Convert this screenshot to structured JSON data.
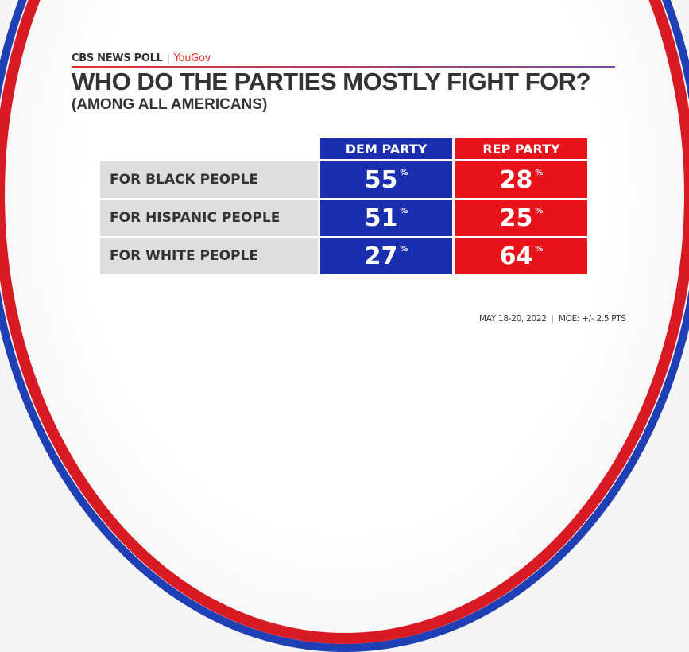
{
  "brand": {
    "source": "CBS NEWS POLL",
    "partner": "YouGov",
    "separator": "|"
  },
  "title": "WHO DO THE PARTIES MOSTLY FIGHT FOR?",
  "subtitle": "(AMONG ALL AMERICANS)",
  "table": {
    "columns": [
      "DEM PARTY",
      "REP PARTY"
    ],
    "rows": [
      {
        "label": "FOR BLACK PEOPLE",
        "dem": "55",
        "rep": "28"
      },
      {
        "label": "FOR HISPANIC PEOPLE",
        "dem": "51",
        "rep": "25"
      },
      {
        "label": "FOR WHITE PEOPLE",
        "dem": "27",
        "rep": "64"
      }
    ],
    "unit": "%"
  },
  "footer": {
    "date": "MAY 18-20, 2022",
    "moe": "MOE: +/- 2.5 PTS",
    "separator": "|"
  },
  "colors": {
    "dem": "#1a2fb0",
    "rep": "#e8121b"
  }
}
